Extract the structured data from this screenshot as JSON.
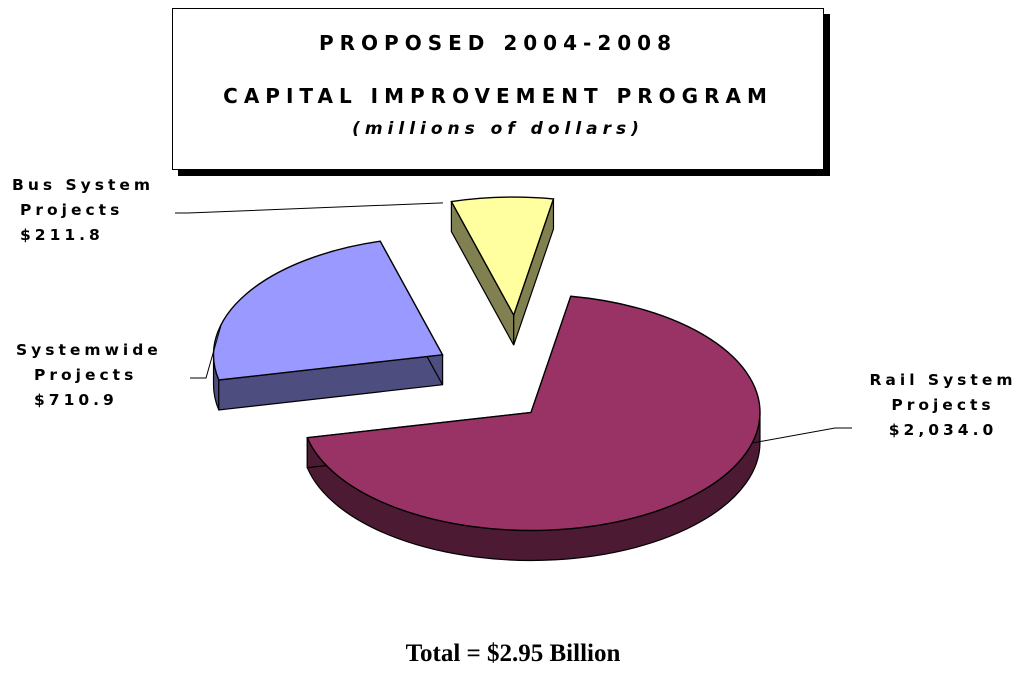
{
  "title": {
    "line1": "PROPOSED 2004-2008",
    "line2": "CAPITAL IMPROVEMENT PROGRAM",
    "line3": "(millions of dollars)"
  },
  "total_label": "Total = $2.95 Billion",
  "chart_data": {
    "type": "pie",
    "style": "3d-exploded",
    "title": "PROPOSED 2004-2008 CAPITAL IMPROVEMENT PROGRAM",
    "subtitle": "(millions of dollars)",
    "unit": "millions of dollars",
    "slices": [
      {
        "name": "Rail System Projects",
        "label_lines": [
          "Rail System",
          "Projects",
          "$2,034.0"
        ],
        "value": 2034.0,
        "color": "#993366",
        "side_color": "#4d1a33"
      },
      {
        "name": "Systemwide Projects",
        "label_lines": [
          "Systemwide",
          "Projects",
          "$710.9"
        ],
        "value": 710.9,
        "color": "#9999ff",
        "side_color": "#4d4d80"
      },
      {
        "name": "Bus System Projects",
        "label_lines": [
          "Bus System",
          "Projects",
          "$211.8"
        ],
        "value": 211.8,
        "color": "#ffffa0",
        "side_color": "#808050"
      }
    ],
    "total": "Total = $2.95 Billion"
  }
}
